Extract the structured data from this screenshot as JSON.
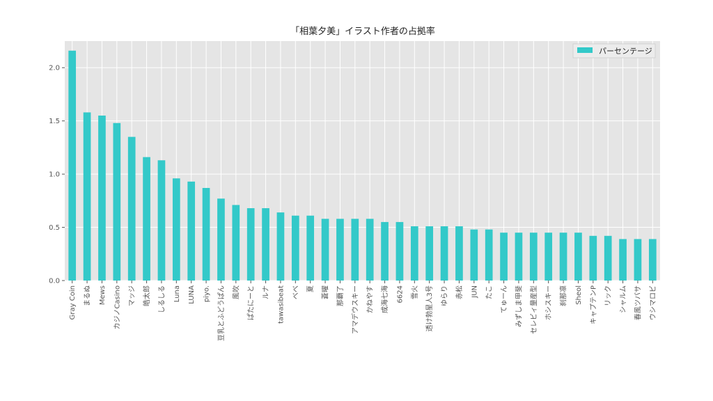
{
  "chart_data": {
    "type": "bar",
    "title": "「相葉夕美」イラスト作者の占拠率",
    "xlabel": "",
    "ylabel": "",
    "ylim": [
      0,
      2.25
    ],
    "yticks": [
      "0.0",
      "0.5",
      "1.0",
      "1.5",
      "2.0"
    ],
    "grid": true,
    "legend_position": "top-right",
    "bar_color": "#33c9c9",
    "plot_background": "#e5e5e5",
    "categories": [
      "Gray Coin",
      "まるぬ",
      "Mews",
      "カジノCasino",
      "マッジ",
      "皓太郎",
      "しるしる",
      "Luna",
      "LUNA",
      "piyo.",
      "豆乳とふどうぱん",
      "風吹",
      "ぱたにーと",
      "ルナ",
      "tawasibeat",
      "べべ",
      "夏",
      "蒼曜",
      "那覇了",
      "アマデウスキー",
      "かねやす",
      "成海七海",
      "6624",
      "雪火",
      "透け勃星人3号",
      "ゆらり",
      "赤松",
      "JUN",
      "たこ",
      "てゅーん",
      "みずしま甲斐",
      "セレビィ量産型",
      "ホシスキー",
      "刹那凛",
      "Sheol",
      "キャプテンP",
      "リック",
      "シャルム",
      "春風ツバサ",
      "ウシマロビ"
    ],
    "series": [
      {
        "name": "パーセンテージ",
        "values": [
          2.16,
          1.58,
          1.55,
          1.48,
          1.35,
          1.16,
          1.13,
          0.96,
          0.93,
          0.87,
          0.77,
          0.71,
          0.68,
          0.68,
          0.64,
          0.61,
          0.61,
          0.58,
          0.58,
          0.58,
          0.58,
          0.55,
          0.55,
          0.51,
          0.51,
          0.51,
          0.51,
          0.48,
          0.48,
          0.45,
          0.45,
          0.45,
          0.45,
          0.45,
          0.45,
          0.42,
          0.42,
          0.39,
          0.39,
          0.39
        ]
      }
    ]
  }
}
